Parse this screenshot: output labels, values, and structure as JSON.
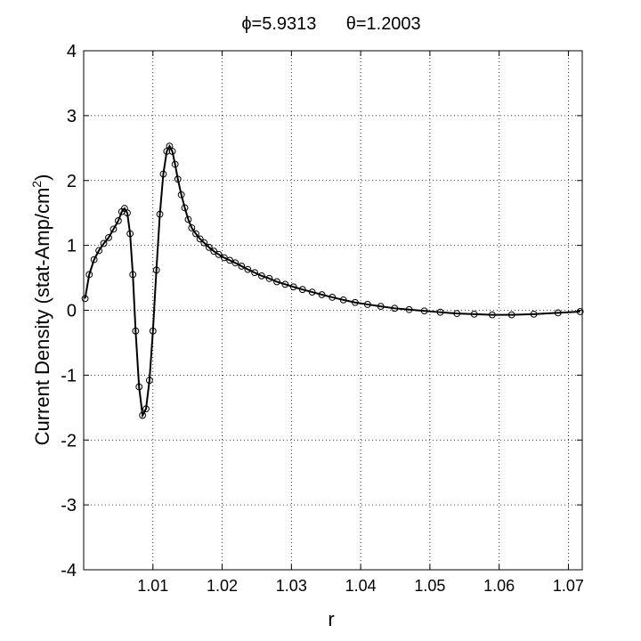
{
  "chart_data": {
    "type": "line",
    "title": "ϕ=5.9313      θ=1.2003",
    "xlabel": "r",
    "ylabel": "Current Density (stat-Amp/cm",
    "ylabel_sup": "2",
    "ylabel_close": ")",
    "xlim": [
      1.0,
      1.072
    ],
    "ylim": [
      -4,
      4
    ],
    "xticks": [
      1.01,
      1.02,
      1.03,
      1.04,
      1.05,
      1.06,
      1.07
    ],
    "yticks": [
      -4,
      -3,
      -2,
      -1,
      0,
      1,
      2,
      3,
      4
    ],
    "xtick_labels": [
      "1.01",
      "1.02",
      "1.03",
      "1.04",
      "1.05",
      "1.06",
      "1.07"
    ],
    "ytick_labels": [
      "-4",
      "-3",
      "-2",
      "-1",
      "0",
      "1",
      "2",
      "3",
      "4"
    ],
    "grid": true,
    "marker": "circle",
    "line_color": "#000000",
    "series": [
      {
        "x": [
          1.0002,
          1.0008,
          1.0015,
          1.0022,
          1.0029,
          1.0036,
          1.0043,
          1.005,
          1.0055,
          1.0059,
          1.0063,
          1.0067,
          1.0071,
          1.0075,
          1.008,
          1.0085,
          1.009,
          1.0095,
          1.01,
          1.0105,
          1.011,
          1.0115,
          1.012,
          1.0124,
          1.0128,
          1.0132,
          1.0136,
          1.0141,
          1.0146,
          1.0151,
          1.0156,
          1.0162,
          1.0168,
          1.0174,
          1.0181,
          1.0188,
          1.0195,
          1.0203,
          1.0211,
          1.0219,
          1.0228,
          1.0237,
          1.0247,
          1.0257,
          1.0268,
          1.0279,
          1.0291,
          1.0303,
          1.0316,
          1.033,
          1.0344,
          1.0359,
          1.0375,
          1.0392,
          1.041,
          1.0429,
          1.0449,
          1.047,
          1.0492,
          1.0515,
          1.0539,
          1.0564,
          1.059,
          1.0618,
          1.065,
          1.0685,
          1.0717
        ],
        "y": [
          0.18,
          0.55,
          0.78,
          0.92,
          1.03,
          1.12,
          1.25,
          1.38,
          1.52,
          1.57,
          1.5,
          1.18,
          0.55,
          -0.32,
          -1.18,
          -1.62,
          -1.52,
          -1.08,
          -0.32,
          0.62,
          1.48,
          2.1,
          2.45,
          2.53,
          2.45,
          2.25,
          2.02,
          1.78,
          1.58,
          1.4,
          1.27,
          1.18,
          1.1,
          1.04,
          0.97,
          0.91,
          0.86,
          0.81,
          0.77,
          0.73,
          0.68,
          0.63,
          0.58,
          0.53,
          0.49,
          0.44,
          0.4,
          0.36,
          0.32,
          0.28,
          0.24,
          0.2,
          0.16,
          0.12,
          0.09,
          0.06,
          0.03,
          0.01,
          -0.01,
          -0.03,
          -0.05,
          -0.06,
          -0.07,
          -0.07,
          -0.06,
          -0.04,
          -0.02
        ]
      }
    ]
  }
}
